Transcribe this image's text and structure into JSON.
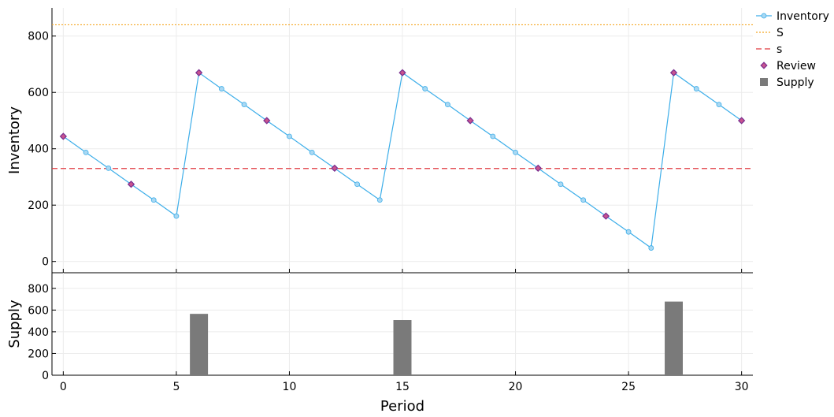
{
  "chart_data": [
    {
      "type": "line",
      "ylabel": "Inventory",
      "ylim": [
        -40,
        900
      ],
      "yticks": [
        0,
        200,
        400,
        600,
        800
      ],
      "xlim": [
        -0.5,
        30.5
      ],
      "grid": true,
      "legend_position": "top-right",
      "x": [
        0,
        1,
        2,
        3,
        4,
        5,
        6,
        7,
        8,
        9,
        10,
        11,
        12,
        13,
        14,
        15,
        16,
        17,
        18,
        19,
        20,
        21,
        22,
        23,
        24,
        25,
        26,
        27,
        28,
        29,
        30
      ],
      "series": [
        {
          "name": "Inventory",
          "color": "#3daee9",
          "style": "line-with-markers",
          "values": [
            444,
            387,
            331,
            274,
            218,
            161,
            670,
            613,
            557,
            500,
            444,
            387,
            331,
            274,
            218,
            670,
            613,
            557,
            500,
            444,
            387,
            331,
            274,
            218,
            161,
            105,
            48,
            670,
            613,
            557,
            500
          ]
        },
        {
          "name": "S",
          "color": "#f5a623",
          "style": "dotted-hline",
          "value": 840
        },
        {
          "name": "s",
          "color": "#e0393e",
          "style": "dashed-hline",
          "value": 330
        },
        {
          "name": "Review",
          "color": "#7b2d8e",
          "style": "diamond-markers",
          "x": [
            0,
            3,
            6,
            9,
            12,
            15,
            18,
            21,
            24,
            27,
            30
          ],
          "values": [
            444,
            274,
            670,
            500,
            331,
            670,
            500,
            331,
            161,
            670,
            500
          ]
        }
      ]
    },
    {
      "type": "bar",
      "ylabel": "Supply",
      "xlabel": "Period",
      "ylim": [
        0,
        900
      ],
      "yticks": [
        0,
        200,
        400,
        600,
        800
      ],
      "xlim": [
        -0.5,
        30.5
      ],
      "xticks": [
        0,
        5,
        10,
        15,
        20,
        25,
        30
      ],
      "grid": true,
      "series": [
        {
          "name": "Supply",
          "color": "#7a7a7a",
          "x": [
            6,
            15,
            27
          ],
          "values": [
            565,
            508,
            678
          ]
        }
      ]
    }
  ],
  "legend": {
    "items": [
      {
        "label": "Inventory",
        "symbol": "line-circle",
        "color": "#3daee9"
      },
      {
        "label": "S",
        "symbol": "dotted-line",
        "color": "#f5a623"
      },
      {
        "label": "s",
        "symbol": "dashed-line",
        "color": "#e0393e"
      },
      {
        "label": "Review",
        "symbol": "diamond",
        "color": "#7b2d8e"
      },
      {
        "label": "Supply",
        "symbol": "square",
        "color": "#7a7a7a"
      }
    ]
  }
}
